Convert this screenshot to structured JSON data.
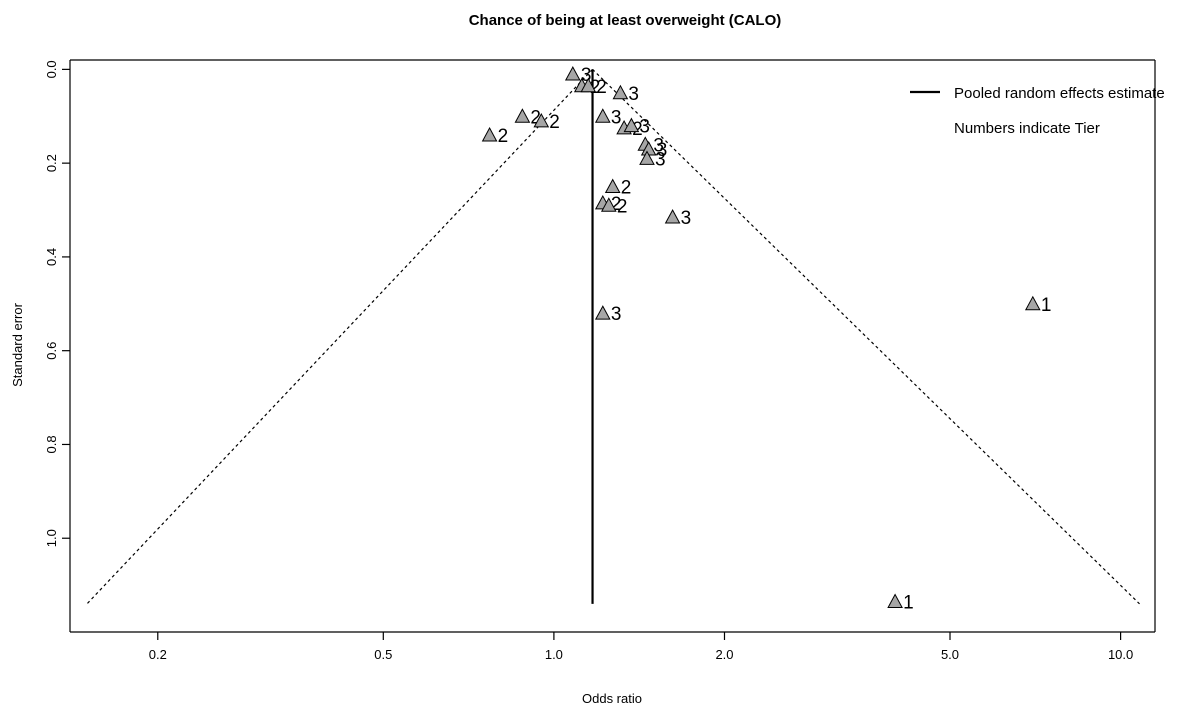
{
  "chart_data": {
    "type": "scatter",
    "subtype": "funnel-plot",
    "title": "Chance of being at least overweight (CALO)",
    "xlabel": "Odds ratio",
    "ylabel": "Standard error",
    "x_scale": "log",
    "y_reversed": true,
    "xlim": [
      0.14,
      11.5
    ],
    "ylim": [
      1.2,
      -0.02
    ],
    "x_ticks": [
      "0.2",
      "0.5",
      "1.0",
      "2.0",
      "5.0",
      "10.0"
    ],
    "x_tick_values": [
      0.2,
      0.5,
      1.0,
      2.0,
      5.0,
      10.0
    ],
    "y_ticks": [
      "0.0",
      "0.2",
      "0.4",
      "0.6",
      "0.8",
      "1.0"
    ],
    "y_tick_values": [
      0.0,
      0.2,
      0.4,
      0.6,
      0.8,
      1.0
    ],
    "pooled_estimate": 1.17,
    "funnel": {
      "apex": [
        1.17,
        0.0
      ],
      "se_bottom": 1.14,
      "left_x": 0.15,
      "right_x": 10.8,
      "line_style": "dotted"
    },
    "points": [
      {
        "x": 1.08,
        "y": 0.01,
        "tier": "3"
      },
      {
        "x": 1.12,
        "y": 0.035,
        "tier": "2"
      },
      {
        "x": 1.15,
        "y": 0.035,
        "tier": "2"
      },
      {
        "x": 1.31,
        "y": 0.05,
        "tier": "3"
      },
      {
        "x": 0.88,
        "y": 0.1,
        "tier": "2"
      },
      {
        "x": 0.95,
        "y": 0.11,
        "tier": "2"
      },
      {
        "x": 1.22,
        "y": 0.1,
        "tier": "3"
      },
      {
        "x": 1.33,
        "y": 0.125,
        "tier": "2"
      },
      {
        "x": 1.37,
        "y": 0.12,
        "tier": "3"
      },
      {
        "x": 0.77,
        "y": 0.14,
        "tier": "2"
      },
      {
        "x": 1.45,
        "y": 0.16,
        "tier": "3"
      },
      {
        "x": 1.47,
        "y": 0.17,
        "tier": "3"
      },
      {
        "x": 1.46,
        "y": 0.19,
        "tier": "3"
      },
      {
        "x": 1.27,
        "y": 0.25,
        "tier": "2"
      },
      {
        "x": 1.22,
        "y": 0.285,
        "tier": "2"
      },
      {
        "x": 1.25,
        "y": 0.29,
        "tier": "2"
      },
      {
        "x": 1.62,
        "y": 0.315,
        "tier": "3"
      },
      {
        "x": 1.22,
        "y": 0.52,
        "tier": "3"
      },
      {
        "x": 7.0,
        "y": 0.5,
        "tier": "1"
      },
      {
        "x": 4.0,
        "y": 1.135,
        "tier": "1"
      }
    ],
    "legend": {
      "position": "top-right",
      "entries": [
        "Pooled random effects estimate",
        "Numbers indicate Tier"
      ]
    },
    "colors": {
      "marker_fill": "#a6a6a6",
      "marker_stroke": "#000000",
      "line": "#000000"
    }
  }
}
